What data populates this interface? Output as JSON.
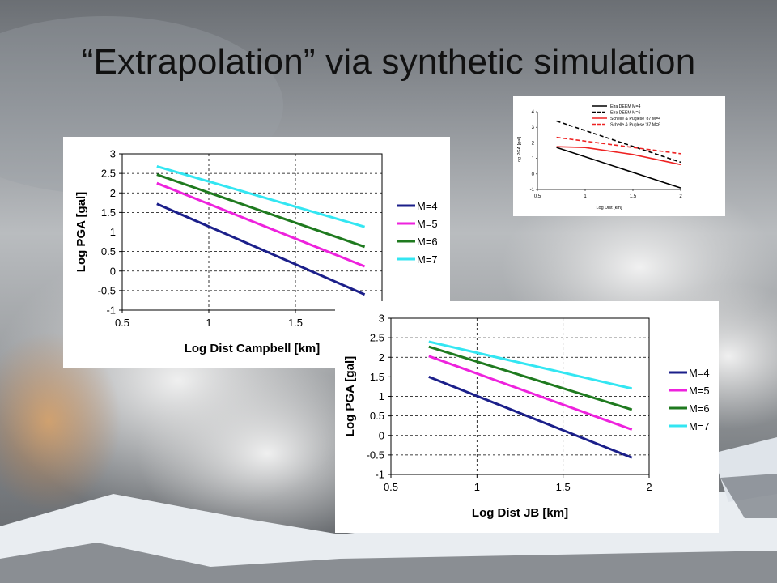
{
  "slide": {
    "title": "“Extrapolation” via synthetic simulation"
  },
  "colors": {
    "m4": "#1b1f8a",
    "m5": "#ee22dd",
    "m6": "#1f7a1f",
    "m7": "#33e6f2",
    "inset_black": "#000000",
    "inset_red": "#ee2222"
  },
  "chart_data": [
    {
      "id": "campbell",
      "type": "line",
      "xlabel": "Log Dist Campbell [km]",
      "ylabel": "Log PGA [gal]",
      "xlim": [
        0.5,
        2
      ],
      "ylim": [
        -1,
        3
      ],
      "xticks": [
        "0.5",
        "1",
        "1.5",
        "2"
      ],
      "yticks": [
        "-1",
        "-0.5",
        "0",
        "0.5",
        "1",
        "1.5",
        "2",
        "2.5",
        "3"
      ],
      "grid": "dashed",
      "legend": "right",
      "series": [
        {
          "name": "M=4",
          "x": [
            0.7,
            1.9
          ],
          "y": [
            1.72,
            -0.6
          ]
        },
        {
          "name": "M=5",
          "x": [
            0.7,
            1.9
          ],
          "y": [
            2.25,
            0.12
          ]
        },
        {
          "name": "M=6",
          "x": [
            0.7,
            1.9
          ],
          "y": [
            2.47,
            0.62
          ]
        },
        {
          "name": "M=7",
          "x": [
            0.7,
            1.9
          ],
          "y": [
            2.68,
            1.13
          ]
        }
      ]
    },
    {
      "id": "jb",
      "type": "line",
      "xlabel": "Log Dist JB [km]",
      "ylabel": "Log PGA [gal]",
      "xlim": [
        0.5,
        2
      ],
      "ylim": [
        -1,
        3
      ],
      "xticks": [
        "0.5",
        "1",
        "1.5",
        "2"
      ],
      "yticks": [
        "-1",
        "-0.5",
        "0",
        "0.5",
        "1",
        "1.5",
        "2",
        "2.5",
        "3"
      ],
      "grid": "dashed",
      "legend": "right",
      "series": [
        {
          "name": "M=4",
          "x": [
            0.72,
            1.9
          ],
          "y": [
            1.5,
            -0.57
          ]
        },
        {
          "name": "M=5",
          "x": [
            0.72,
            1.9
          ],
          "y": [
            2.03,
            0.15
          ]
        },
        {
          "name": "M=6",
          "x": [
            0.72,
            1.9
          ],
          "y": [
            2.27,
            0.66
          ]
        },
        {
          "name": "M=7",
          "x": [
            0.72,
            1.9
          ],
          "y": [
            2.4,
            1.2
          ]
        }
      ]
    },
    {
      "id": "inset",
      "type": "line",
      "xlabel": "Log Dist [km]",
      "ylabel": "Log PGA [gal]",
      "xlim": [
        0.5,
        2
      ],
      "ylim": [
        -1,
        4
      ],
      "xticks": [
        "0.5",
        "1",
        "1.5",
        "2"
      ],
      "yticks": [
        "-1",
        "0",
        "1",
        "2",
        "3",
        "4"
      ],
      "grid": "none",
      "legend": "top-right",
      "series": [
        {
          "name": "Elra DEEM M=4",
          "style": "solid",
          "x": [
            0.7,
            2.0
          ],
          "y": [
            1.7,
            -0.9
          ]
        },
        {
          "name": "Elra DEEM M=6",
          "style": "dashed",
          "x": [
            0.7,
            2.0
          ],
          "y": [
            3.4,
            0.75
          ]
        },
        {
          "name": "Schelle & Puglese '87 M=4",
          "style": "solid",
          "x": [
            0.7,
            1.0,
            1.5,
            2.0
          ],
          "y": [
            1.75,
            1.7,
            1.25,
            0.6
          ]
        },
        {
          "name": "Schelle & Puglese '87 M=6",
          "style": "dashed",
          "x": [
            0.7,
            2.0
          ],
          "y": [
            2.35,
            1.3
          ]
        }
      ]
    }
  ]
}
